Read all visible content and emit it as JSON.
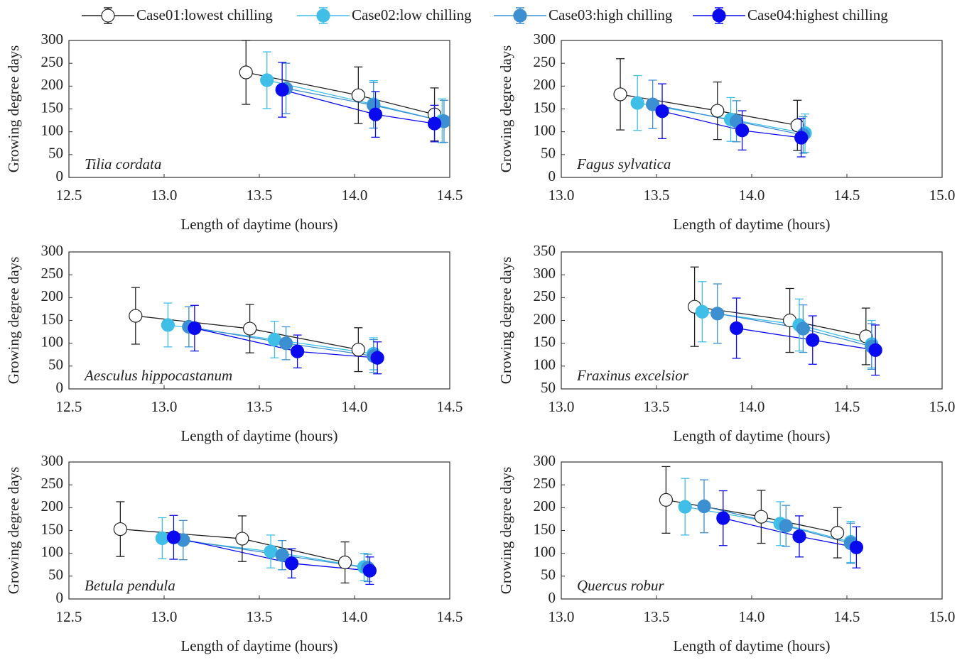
{
  "chart_data": [
    {
      "type": "line",
      "annotation": "Tilia cordata",
      "xlabel": "Length of daytime (hours)",
      "ylabel": "Growing degree days",
      "xlim": [
        12.5,
        14.5
      ],
      "xticks": [
        12.5,
        {
          "value": 13,
          "label": "13.0"
        },
        13.5,
        {
          "value": 14,
          "label": "14.0"
        },
        14.5
      ],
      "ylim": [
        0,
        300
      ],
      "yticks": [
        0,
        50,
        100,
        150,
        200,
        250,
        300
      ],
      "series": [
        {
          "name": "Case01:lowest chilling",
          "color": "#222222",
          "fill": "#ffffff",
          "x": [
            13.43,
            14.02,
            14.42
          ],
          "values": [
            230,
            180,
            138
          ],
          "errors": [
            70,
            62,
            58
          ]
        },
        {
          "name": "Case02:low chilling",
          "color": "#3fbfe8",
          "fill": "#3fbfe8",
          "x": [
            13.54,
            14.1,
            14.46
          ],
          "values": [
            213,
            160,
            124
          ],
          "errors": [
            62,
            52,
            48
          ]
        },
        {
          "name": "Case03:high chilling",
          "color": "#3c8fd0",
          "fill": "#3c8fd0",
          "x": [
            13.64,
            14.1,
            14.47
          ],
          "values": [
            195,
            158,
            123
          ],
          "errors": [
            55,
            50,
            46
          ]
        },
        {
          "name": "Case04:highest chilling",
          "color": "#0a0aee",
          "fill": "#0a0aee",
          "x": [
            13.62,
            14.11,
            14.42
          ],
          "values": [
            192,
            138,
            118
          ],
          "errors": [
            60,
            50,
            40
          ]
        }
      ]
    },
    {
      "type": "line",
      "annotation": "Fagus sylvatica",
      "xlabel": "Length of daytime (hours)",
      "ylabel": "Growing degree days",
      "xlim": [
        13,
        15
      ],
      "xticks": [
        {
          "value": 13,
          "label": "13.0"
        },
        13.5,
        {
          "value": 14,
          "label": "14.0"
        },
        14.5,
        {
          "value": 15,
          "label": "15.0"
        }
      ],
      "ylim": [
        0,
        300
      ],
      "yticks": [
        0,
        50,
        100,
        150,
        200,
        250,
        300
      ],
      "series": [
        {
          "color": "#222222",
          "fill": "#ffffff",
          "x": [
            13.31,
            13.82,
            14.24
          ],
          "values": [
            182,
            146,
            114
          ],
          "errors": [
            78,
            63,
            55
          ]
        },
        {
          "color": "#3fbfe8",
          "fill": "#3fbfe8",
          "x": [
            13.4,
            13.89,
            14.28
          ],
          "values": [
            163,
            127,
            97
          ],
          "errors": [
            60,
            48,
            42
          ]
        },
        {
          "color": "#3c8fd0",
          "fill": "#3c8fd0",
          "x": [
            13.48,
            13.92,
            14.27
          ],
          "values": [
            160,
            123,
            93
          ],
          "errors": [
            53,
            45,
            40
          ]
        },
        {
          "color": "#0a0aee",
          "fill": "#0a0aee",
          "x": [
            13.53,
            13.95,
            14.26
          ],
          "values": [
            145,
            103,
            87
          ],
          "errors": [
            60,
            43,
            42
          ]
        }
      ]
    },
    {
      "type": "line",
      "annotation": "Aesculus hippocastanum",
      "xlabel": "Length of daytime (hours)",
      "ylabel": "Growing degree days",
      "xlim": [
        12.5,
        14.5
      ],
      "xticks": [
        12.5,
        {
          "value": 13,
          "label": "13.0"
        },
        13.5,
        {
          "value": 14,
          "label": "14.0"
        },
        14.5
      ],
      "ylim": [
        0,
        300
      ],
      "yticks": [
        0,
        50,
        100,
        150,
        200,
        250,
        300
      ],
      "series": [
        {
          "color": "#222222",
          "fill": "#ffffff",
          "x": [
            12.85,
            13.45,
            14.02
          ],
          "values": [
            160,
            132,
            86
          ],
          "errors": [
            62,
            53,
            48
          ]
        },
        {
          "color": "#3fbfe8",
          "fill": "#3fbfe8",
          "x": [
            13.02,
            13.58,
            14.1
          ],
          "values": [
            140,
            108,
            77
          ],
          "errors": [
            48,
            40,
            35
          ]
        },
        {
          "color": "#3c8fd0",
          "fill": "#3c8fd0",
          "x": [
            13.13,
            13.64,
            14.1
          ],
          "values": [
            136,
            100,
            72
          ],
          "errors": [
            44,
            36,
            36
          ]
        },
        {
          "color": "#0a0aee",
          "fill": "#0a0aee",
          "x": [
            13.16,
            13.7,
            14.12
          ],
          "values": [
            133,
            82,
            68
          ],
          "errors": [
            50,
            36,
            35
          ]
        }
      ]
    },
    {
      "type": "line",
      "annotation": "Fraxinus excelsior",
      "xlabel": "Length of daytime (hours)",
      "ylabel": "Growing degree days",
      "xlim": [
        13,
        15
      ],
      "xticks": [
        {
          "value": 13,
          "label": "13.0"
        },
        13.5,
        {
          "value": 14,
          "label": "14.0"
        },
        14.5,
        {
          "value": 15,
          "label": "15.0"
        }
      ],
      "ylim": [
        50,
        350
      ],
      "yticks": [
        50,
        100,
        150,
        200,
        250,
        300,
        350
      ],
      "series": [
        {
          "color": "#222222",
          "fill": "#ffffff",
          "x": [
            13.7,
            14.2,
            14.6
          ],
          "values": [
            230,
            200,
            165
          ],
          "errors": [
            87,
            70,
            62
          ]
        },
        {
          "color": "#3fbfe8",
          "fill": "#3fbfe8",
          "x": [
            13.74,
            14.25,
            14.63
          ],
          "values": [
            219,
            190,
            148
          ],
          "errors": [
            66,
            57,
            52
          ]
        },
        {
          "color": "#3c8fd0",
          "fill": "#3c8fd0",
          "x": [
            13.82,
            14.27,
            14.63
          ],
          "values": [
            215,
            182,
            143
          ],
          "errors": [
            65,
            52,
            50
          ]
        },
        {
          "color": "#0a0aee",
          "fill": "#0a0aee",
          "x": [
            13.92,
            14.32,
            14.65
          ],
          "values": [
            183,
            157,
            135
          ],
          "errors": [
            66,
            53,
            55
          ]
        }
      ]
    },
    {
      "type": "line",
      "annotation": "Betula pendula",
      "xlabel": "Length of daytime (hours)",
      "ylabel": "Growing degree days",
      "xlim": [
        12.5,
        14.5
      ],
      "xticks": [
        12.5,
        {
          "value": 13,
          "label": "13.0"
        },
        13.5,
        {
          "value": 14,
          "label": "14.0"
        },
        14.5
      ],
      "ylim": [
        0,
        300
      ],
      "yticks": [
        0,
        50,
        100,
        150,
        200,
        250,
        300
      ],
      "series": [
        {
          "color": "#222222",
          "fill": "#ffffff",
          "x": [
            12.77,
            13.41,
            13.95
          ],
          "values": [
            153,
            132,
            80
          ],
          "errors": [
            60,
            50,
            45
          ]
        },
        {
          "color": "#3fbfe8",
          "fill": "#3fbfe8",
          "x": [
            12.99,
            13.56,
            14.05
          ],
          "values": [
            133,
            104,
            70
          ],
          "errors": [
            45,
            36,
            30
          ]
        },
        {
          "color": "#3c8fd0",
          "fill": "#3c8fd0",
          "x": [
            13.1,
            13.62,
            14.07
          ],
          "values": [
            129,
            96,
            68
          ],
          "errors": [
            43,
            32,
            30
          ]
        },
        {
          "color": "#0a0aee",
          "fill": "#0a0aee",
          "x": [
            13.05,
            13.67,
            14.08
          ],
          "values": [
            135,
            78,
            62
          ],
          "errors": [
            48,
            32,
            30
          ]
        }
      ]
    },
    {
      "type": "line",
      "annotation": "Quercus robur",
      "xlabel": "Length of daytime (hours)",
      "ylabel": "Growing degree days",
      "xlim": [
        13,
        15
      ],
      "xticks": [
        {
          "value": 13,
          "label": "13.0"
        },
        13.5,
        {
          "value": 14,
          "label": "14.0"
        },
        14.5,
        {
          "value": 15,
          "label": "15.0"
        }
      ],
      "ylim": [
        0,
        300
      ],
      "yticks": [
        0,
        50,
        100,
        150,
        200,
        250,
        300
      ],
      "series": [
        {
          "color": "#222222",
          "fill": "#ffffff",
          "x": [
            13.55,
            14.05,
            14.45
          ],
          "values": [
            217,
            180,
            145
          ],
          "errors": [
            73,
            58,
            55
          ]
        },
        {
          "color": "#3fbfe8",
          "fill": "#3fbfe8",
          "x": [
            13.65,
            14.15,
            14.52
          ],
          "values": [
            202,
            165,
            125
          ],
          "errors": [
            62,
            48,
            45
          ]
        },
        {
          "color": "#3c8fd0",
          "fill": "#3c8fd0",
          "x": [
            13.75,
            14.18,
            14.52
          ],
          "values": [
            203,
            160,
            122
          ],
          "errors": [
            58,
            45,
            44
          ]
        },
        {
          "color": "#0a0aee",
          "fill": "#0a0aee",
          "x": [
            13.85,
            14.25,
            14.55
          ],
          "values": [
            177,
            137,
            113
          ],
          "errors": [
            60,
            45,
            45
          ]
        }
      ]
    }
  ]
}
